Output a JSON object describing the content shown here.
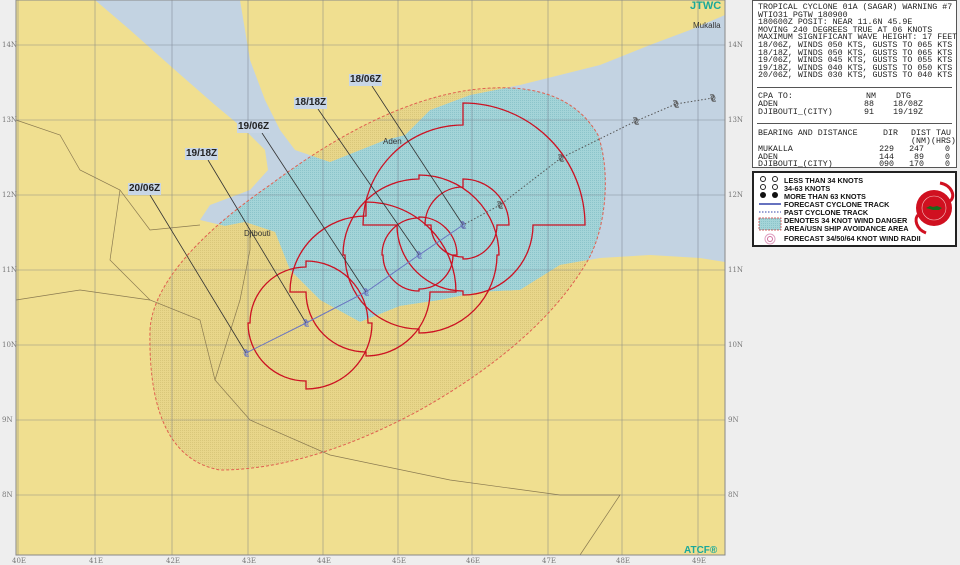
{
  "map": {
    "brand_top": "JTWC",
    "brand_bottom": "ATCF®",
    "lon_labels": [
      "40E",
      "41E",
      "42E",
      "43E",
      "44E",
      "45E",
      "46E",
      "47E",
      "48E",
      "49E"
    ],
    "lat_labels": [
      "14N",
      "13N",
      "12N",
      "11N",
      "10N",
      "9N",
      "8N"
    ],
    "places": [
      "Mukalla",
      "Aden",
      "Djibouti"
    ],
    "forecast_labels": [
      "18/06Z",
      "18/18Z",
      "19/06Z",
      "19/18Z",
      "20/06Z"
    ],
    "colors": {
      "land": "#f0df90",
      "water": "#c3d3e2",
      "danger_area": "#9fd2d6",
      "wind_radii": "#cc1122",
      "forecast_track": "#6a75c0",
      "danger_boundary": "#e06050"
    }
  },
  "warning": {
    "lines": [
      "TROPICAL CYCLONE 01A (SAGAR) WARNING #7",
      "WTIO31 PGTW 180900",
      "180600Z POSIT: NEAR 11.6N 45.9E",
      "MOVING 240 DEGREES TRUE AT 06 KNOTS",
      "MAXIMUM SIGNIFICANT WAVE HEIGHT: 17 FEET",
      "18/06Z, WINDS 050 KTS, GUSTS TO 065 KTS",
      "18/18Z, WINDS 050 KTS, GUSTS TO 065 KTS",
      "19/06Z, WINDS 045 KTS, GUSTS TO 055 KTS",
      "19/18Z, WINDS 040 KTS, GUSTS TO 050 KTS",
      "20/06Z, WINDS 030 KTS, GUSTS TO 040 KTS"
    ],
    "cpa": {
      "header": "CPA TO:",
      "col_nm": "NM",
      "col_dtg": "DTG",
      "rows": [
        {
          "name": "ADEN",
          "nm": "88",
          "dtg": "18/08Z"
        },
        {
          "name": "DJIBOUTI_(CITY)",
          "nm": "91",
          "dtg": "19/19Z"
        }
      ]
    },
    "bearing": {
      "header": "BEARING AND DISTANCE",
      "col_dir": "DIR",
      "col_dist": "DIST",
      "col_dist_unit": "(NM)",
      "col_tau": "TAU",
      "col_tau_unit": "(HRS)",
      "rows": [
        {
          "name": "MUKALLA",
          "dir": "229",
          "dist": "247",
          "tau": "0"
        },
        {
          "name": "ADEN",
          "dir": "144",
          "dist": "89",
          "tau": "0"
        },
        {
          "name": "DJIBOUTI_(CITY)",
          "dir": "090",
          "dist": "170",
          "tau": "0"
        }
      ]
    }
  },
  "legend": {
    "items": [
      "LESS THAN 34 KNOTS",
      "34-63 KNOTS",
      "MORE THAN 63 KNOTS",
      "FORECAST CYCLONE TRACK",
      "PAST CYCLONE TRACK",
      "DENOTES 34 KNOT WIND DANGER",
      "AREA/USN SHIP AVOIDANCE AREA",
      "FORECAST 34/50/64 KNOT WIND RADII"
    ]
  }
}
